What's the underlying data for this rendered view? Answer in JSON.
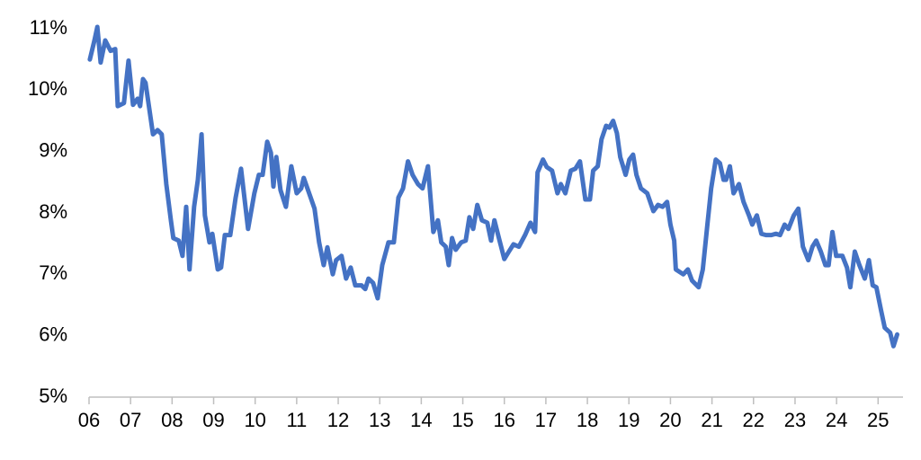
{
  "chart_data": {
    "type": "line",
    "color": "#4472c4",
    "x": [
      6.02,
      6.13,
      6.2,
      6.28,
      6.39,
      6.52,
      6.63,
      6.69,
      6.84,
      6.95,
      7.06,
      7.17,
      7.23,
      7.3,
      7.36,
      7.54,
      7.65,
      7.75,
      7.86,
      7.97,
      8.03,
      8.16,
      8.25,
      8.34,
      8.42,
      8.53,
      8.62,
      8.71,
      8.79,
      8.9,
      8.97,
      9.1,
      9.18,
      9.27,
      9.4,
      9.53,
      9.66,
      9.83,
      9.98,
      10.09,
      10.18,
      10.29,
      10.38,
      10.44,
      10.51,
      10.61,
      10.74,
      10.87,
      11.0,
      11.11,
      11.17,
      11.3,
      11.43,
      11.54,
      11.65,
      11.74,
      11.87,
      11.95,
      12.08,
      12.19,
      12.3,
      12.41,
      12.56,
      12.65,
      12.73,
      12.84,
      12.95,
      13.06,
      13.21,
      13.34,
      13.45,
      13.56,
      13.68,
      13.79,
      13.92,
      14.03,
      14.16,
      14.29,
      14.4,
      14.48,
      14.59,
      14.66,
      14.74,
      14.83,
      14.96,
      15.07,
      15.16,
      15.25,
      15.35,
      15.46,
      15.59,
      15.68,
      15.76,
      15.87,
      16.0,
      16.11,
      16.22,
      16.35,
      16.5,
      16.63,
      16.74,
      16.8,
      16.93,
      17.02,
      17.15,
      17.28,
      17.36,
      17.47,
      17.6,
      17.71,
      17.82,
      17.95,
      18.06,
      18.14,
      18.25,
      18.34,
      18.45,
      18.53,
      18.62,
      18.71,
      18.79,
      18.92,
      19.01,
      19.1,
      19.18,
      19.29,
      19.44,
      19.59,
      19.7,
      19.81,
      19.92,
      20.0,
      20.09,
      20.13,
      20.31,
      20.42,
      20.52,
      20.68,
      20.78,
      20.89,
      20.98,
      21.09,
      21.19,
      21.28,
      21.34,
      21.43,
      21.52,
      21.65,
      21.76,
      21.89,
      21.97,
      22.08,
      22.19,
      22.3,
      22.43,
      22.54,
      22.64,
      22.75,
      22.84,
      22.97,
      23.08,
      23.19,
      23.32,
      23.42,
      23.51,
      23.62,
      23.73,
      23.81,
      23.9,
      23.99,
      24.14,
      24.25,
      24.33,
      24.44,
      24.55,
      24.68,
      24.78,
      24.87,
      24.96,
      25.07,
      25.16,
      25.29,
      25.37,
      25.46
    ],
    "values": [
      10.5,
      10.81,
      11.03,
      10.45,
      10.81,
      10.64,
      10.67,
      9.74,
      9.79,
      10.48,
      9.76,
      9.86,
      9.74,
      10.18,
      10.12,
      9.28,
      9.35,
      9.28,
      8.47,
      7.88,
      7.59,
      7.55,
      7.3,
      8.1,
      7.08,
      8.1,
      8.54,
      9.28,
      7.96,
      7.52,
      7.66,
      7.08,
      7.11,
      7.64,
      7.64,
      8.25,
      8.72,
      7.74,
      8.32,
      8.62,
      8.62,
      9.16,
      8.98,
      8.43,
      8.91,
      8.37,
      8.1,
      8.76,
      8.32,
      8.4,
      8.57,
      8.32,
      8.07,
      7.52,
      7.15,
      7.44,
      7.0,
      7.23,
      7.3,
      6.93,
      7.11,
      6.82,
      6.82,
      6.76,
      6.93,
      6.86,
      6.61,
      7.15,
      7.52,
      7.52,
      8.25,
      8.4,
      8.84,
      8.62,
      8.47,
      8.4,
      8.76,
      7.69,
      7.88,
      7.52,
      7.45,
      7.15,
      7.59,
      7.4,
      7.52,
      7.55,
      7.93,
      7.74,
      8.13,
      7.88,
      7.84,
      7.55,
      7.88,
      7.59,
      7.25,
      7.37,
      7.49,
      7.45,
      7.64,
      7.84,
      7.69,
      8.66,
      8.87,
      8.75,
      8.69,
      8.32,
      8.47,
      8.32,
      8.69,
      8.72,
      8.84,
      8.22,
      8.22,
      8.69,
      8.76,
      9.2,
      9.42,
      9.39,
      9.5,
      9.3,
      8.91,
      8.62,
      8.87,
      8.95,
      8.62,
      8.4,
      8.32,
      8.03,
      8.13,
      8.1,
      8.18,
      7.81,
      7.55,
      7.08,
      7.0,
      7.08,
      6.9,
      6.79,
      7.08,
      7.81,
      8.4,
      8.87,
      8.81,
      8.54,
      8.54,
      8.76,
      8.32,
      8.47,
      8.18,
      7.96,
      7.81,
      7.96,
      7.66,
      7.64,
      7.64,
      7.66,
      7.64,
      7.81,
      7.74,
      7.96,
      8.07,
      7.45,
      7.23,
      7.45,
      7.55,
      7.37,
      7.15,
      7.15,
      7.69,
      7.3,
      7.3,
      7.11,
      6.79,
      7.37,
      7.15,
      6.93,
      7.23,
      6.82,
      6.79,
      6.42,
      6.13,
      6.05,
      5.83,
      6.02
    ],
    "xlim": [
      6,
      25.6
    ],
    "xticks": [
      {
        "value": 6,
        "label": "06"
      },
      {
        "value": 7,
        "label": "07"
      },
      {
        "value": 8,
        "label": "08"
      },
      {
        "value": 9,
        "label": "09"
      },
      10,
      11,
      12,
      13,
      14,
      15,
      16,
      17,
      18,
      19,
      20,
      21,
      22,
      23,
      24,
      25
    ],
    "ylim": [
      5,
      11
    ],
    "yticks": [
      {
        "value": 5,
        "label": "5%"
      },
      {
        "value": 6,
        "label": "6%"
      },
      {
        "value": 7,
        "label": "7%"
      },
      {
        "value": 8,
        "label": "8%"
      },
      {
        "value": 9,
        "label": "9%"
      },
      {
        "value": 10,
        "label": "10%"
      },
      {
        "value": 11,
        "label": "11%"
      }
    ]
  }
}
